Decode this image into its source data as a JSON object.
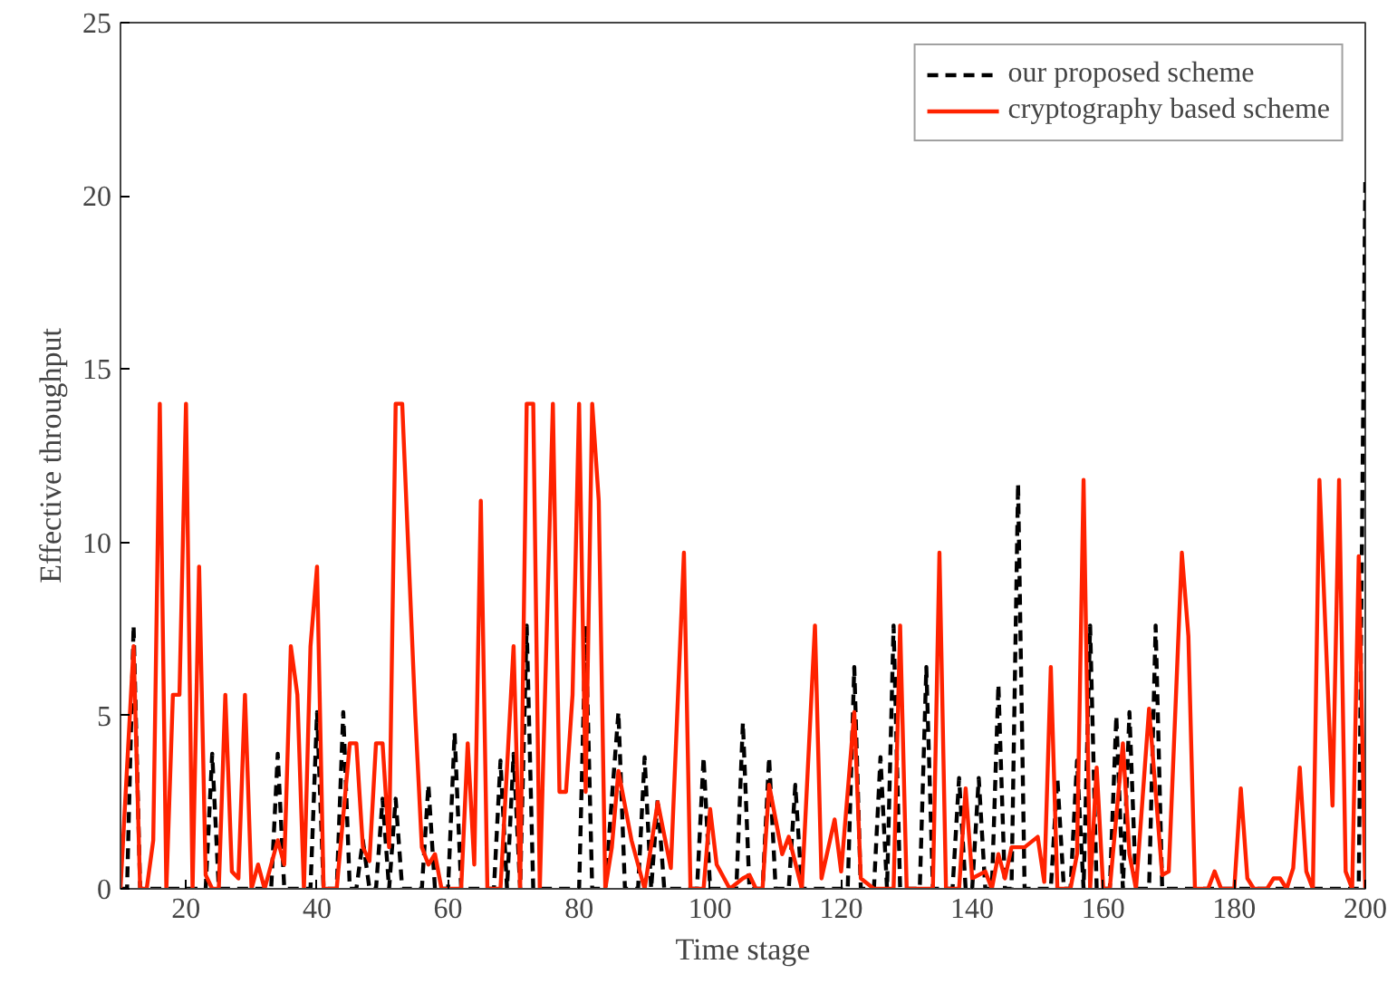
{
  "chart_data": {
    "type": "line",
    "xlabel": "Time stage",
    "ylabel": "Effective throughput",
    "xlim": [
      10,
      200
    ],
    "ylim": [
      0,
      25
    ],
    "xticks": [
      20,
      40,
      60,
      80,
      100,
      120,
      140,
      160,
      180,
      200
    ],
    "yticks": [
      0,
      5,
      10,
      15,
      20,
      25
    ],
    "grid": false,
    "legend": "top right",
    "marker": "none",
    "series": [
      {
        "name": "our proposed scheme",
        "color": "#000000",
        "line_style": "dashed",
        "x": [
          10,
          11,
          12,
          13,
          23,
          24,
          25,
          33,
          34,
          35,
          39,
          40,
          41,
          43,
          44,
          45,
          46,
          47,
          48,
          49,
          50,
          51,
          52,
          53,
          56,
          57,
          58,
          60,
          61,
          62,
          67,
          68,
          69,
          70,
          71,
          72,
          73,
          80,
          81,
          82,
          84,
          85,
          86,
          87,
          89,
          90,
          91,
          92,
          93,
          98,
          99,
          100,
          104,
          105,
          106,
          108,
          109,
          110,
          112,
          113,
          114,
          121,
          122,
          123,
          125,
          126,
          127,
          128,
          129,
          132,
          133,
          134,
          137,
          138,
          139,
          140,
          141,
          142,
          143,
          144,
          145,
          146,
          147,
          148,
          152,
          153,
          154,
          155,
          156,
          157,
          158,
          159,
          161,
          162,
          163,
          164,
          165,
          167,
          168,
          169,
          199,
          200
        ],
        "values": [
          0,
          0,
          7.6,
          0,
          0,
          3.9,
          0,
          0,
          3.9,
          0,
          0,
          5.1,
          0,
          0,
          5.1,
          0,
          0,
          1.4,
          0,
          0,
          2.6,
          0,
          2.6,
          0,
          0,
          3.0,
          0,
          0,
          4.5,
          0,
          0,
          3.7,
          0,
          3.9,
          0,
          7.6,
          0,
          0,
          7.6,
          0,
          0,
          2.6,
          5.1,
          0,
          0,
          3.8,
          0,
          2.6,
          0,
          0,
          3.8,
          0,
          0,
          4.8,
          0,
          0,
          3.8,
          0,
          0,
          3.0,
          0,
          0,
          6.4,
          0,
          0,
          3.8,
          0,
          7.6,
          0,
          0,
          6.4,
          0,
          0,
          3.2,
          0,
          0,
          3.2,
          0,
          0,
          5.9,
          0,
          0,
          11.7,
          0,
          0,
          3.2,
          0,
          0,
          3.7,
          0,
          7.6,
          0,
          0,
          5.0,
          0,
          5.1,
          0,
          0,
          7.6,
          0,
          0,
          20.4
        ]
      },
      {
        "name": "cryptography based scheme",
        "color": "#ff2200",
        "line_style": "solid",
        "x": [
          10,
          12,
          13,
          14,
          15,
          16,
          17,
          18,
          19,
          20,
          21,
          22,
          23,
          24,
          25,
          26,
          27,
          28,
          29,
          30,
          31,
          32,
          34,
          35,
          36,
          37,
          38,
          39,
          40,
          41,
          43,
          45,
          46,
          47,
          48,
          49,
          50,
          51,
          52,
          53,
          54,
          55,
          56,
          57,
          58,
          59,
          62,
          63,
          64,
          65,
          66,
          68,
          70,
          71,
          72,
          73,
          74,
          76,
          77,
          78,
          79,
          80,
          81,
          82,
          83,
          84,
          85,
          86,
          88,
          90,
          92,
          94,
          96,
          97,
          99,
          100,
          101,
          103,
          105,
          106,
          107,
          108,
          109,
          111,
          112,
          114,
          116,
          117,
          119,
          120,
          122,
          123,
          125,
          128,
          129,
          130,
          134,
          135,
          136,
          138,
          139,
          140,
          142,
          143,
          144,
          145,
          146,
          148,
          150,
          151,
          152,
          153,
          155,
          156,
          157,
          158,
          159,
          160,
          161,
          163,
          164,
          165,
          167,
          169,
          170,
          172,
          173,
          174,
          176,
          177,
          178,
          180,
          181,
          182,
          183,
          185,
          186,
          187,
          188,
          189,
          190,
          191,
          192,
          193,
          195,
          196,
          197,
          198,
          199,
          200
        ],
        "values": [
          0,
          7.0,
          0,
          0,
          1.4,
          14,
          0,
          5.6,
          5.6,
          14,
          0,
          9.3,
          0.4,
          0,
          0,
          5.6,
          0.5,
          0.3,
          5.6,
          0,
          0.7,
          0,
          1.4,
          0.7,
          7.0,
          5.6,
          0,
          7.0,
          9.3,
          0,
          0,
          4.2,
          4.2,
          1.2,
          0.8,
          4.2,
          4.2,
          1.2,
          14,
          14,
          9.5,
          5,
          1.2,
          0.7,
          1.0,
          0,
          0,
          4.2,
          0.7,
          11.2,
          0,
          0,
          7.0,
          0,
          14,
          14,
          0,
          14,
          2.8,
          2.8,
          5.6,
          14,
          2.8,
          14,
          11.2,
          0,
          1.2,
          3.4,
          1.4,
          0,
          2.5,
          0.6,
          9.7,
          0,
          0,
          2.3,
          0.7,
          0,
          0.3,
          0.4,
          0,
          0,
          3.0,
          1.0,
          1.5,
          0,
          7.6,
          0.3,
          2.0,
          0.5,
          5.1,
          0.3,
          0,
          0,
          7.6,
          0,
          0,
          9.7,
          0,
          0,
          2.9,
          0.3,
          0.5,
          0,
          1.0,
          0.3,
          1.2,
          1.2,
          1.5,
          0.2,
          6.4,
          0,
          0,
          1.0,
          11.8,
          0,
          3.5,
          0,
          0,
          4.2,
          1.0,
          0,
          5.2,
          0.4,
          0.5,
          9.7,
          7.3,
          0,
          0,
          0.5,
          0,
          0,
          2.9,
          0.3,
          0,
          0,
          0.3,
          0.3,
          0,
          0.6,
          3.5,
          0.5,
          0,
          11.8,
          2.4,
          11.8,
          0.5,
          0,
          9.6,
          0
        ]
      }
    ]
  }
}
